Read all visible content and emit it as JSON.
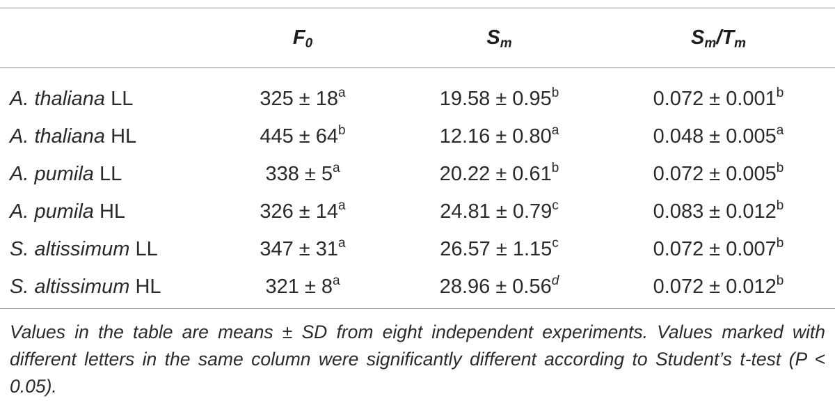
{
  "table": {
    "headers": [
      {
        "id": "f0",
        "main": "F",
        "sub": "0",
        "slash": "",
        "main2": "",
        "sub2": ""
      },
      {
        "id": "sm",
        "main": "S",
        "sub": "m",
        "slash": "",
        "main2": "",
        "sub2": ""
      },
      {
        "id": "sm_tm",
        "main": "S",
        "sub": "m",
        "slash": "/",
        "main2": "T",
        "sub2": "m"
      }
    ],
    "rows": [
      {
        "species": "A. thaliana",
        "condition": "LL",
        "f0": "325 ± 18",
        "f0_sig": "a",
        "sm": "19.58 ± 0.95",
        "sm_sig": "b",
        "sm_tm": "0.072 ± 0.001",
        "sm_tm_sig": "b"
      },
      {
        "species": "A. thaliana",
        "condition": "HL",
        "f0": "445 ± 64",
        "f0_sig": "b",
        "sm": "12.16 ± 0.80",
        "sm_sig": "a",
        "sm_tm": "0.048 ± 0.005",
        "sm_tm_sig": "a"
      },
      {
        "species": "A. pumila",
        "condition": "LL",
        "f0": "338 ± 5",
        "f0_sig": "a",
        "sm": "20.22 ± 0.61",
        "sm_sig": "b",
        "sm_tm": "0.072 ± 0.005",
        "sm_tm_sig": "b"
      },
      {
        "species": "A. pumila",
        "condition": "HL",
        "f0": "326 ± 14",
        "f0_sig": "a",
        "sm": "24.81 ± 0.79",
        "sm_sig": "c",
        "sm_tm": "0.083 ± 0.012",
        "sm_tm_sig": "b"
      },
      {
        "species": "S. altissimum",
        "condition": "LL",
        "f0": "347 ± 31",
        "f0_sig": "a",
        "sm": "26.57 ± 1.15",
        "sm_sig": "c",
        "sm_tm": "0.072 ± 0.007",
        "sm_tm_sig": "b"
      },
      {
        "species": "S. altissimum",
        "condition": "HL",
        "f0": "321 ± 8",
        "f0_sig": "a",
        "sm": "28.96 ± 0.56",
        "sm_sig": "d",
        "sm_tm": "0.072 ± 0.012",
        "sm_tm_sig": "b"
      }
    ],
    "footnote": "Values in the table are means ± SD from eight independent experiments. Values marked with different letters in the same column were significantly different according to Student’s t-test (P < 0.05)."
  }
}
